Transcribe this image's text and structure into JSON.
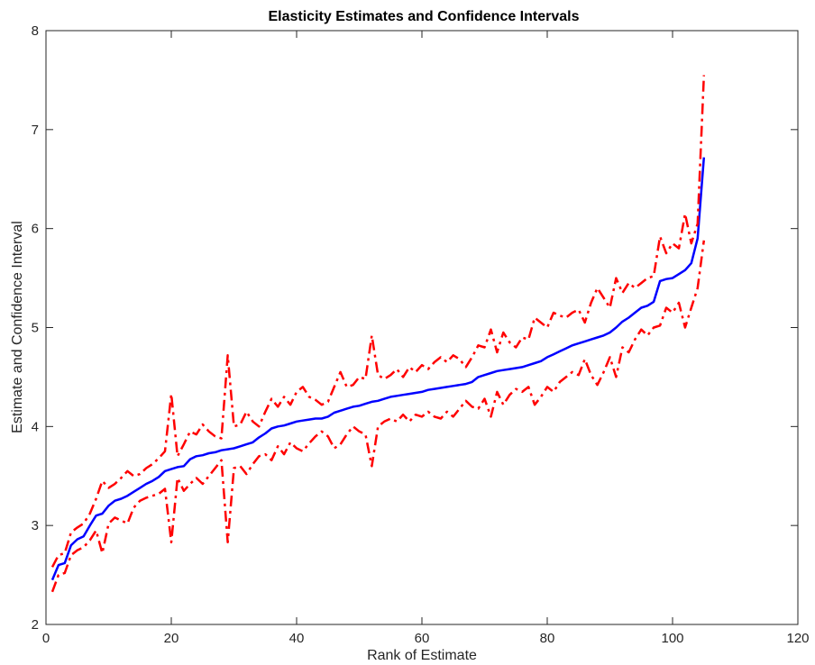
{
  "chart_data": {
    "type": "line",
    "title": "Elasticity Estimates and Confidence Intervals",
    "xlabel": "Rank of Estimate",
    "ylabel": "Estimate and Confidence Interval",
    "xlim": [
      0,
      120
    ],
    "ylim": [
      2,
      8
    ],
    "xticks": [
      0,
      20,
      40,
      60,
      80,
      100,
      120
    ],
    "yticks": [
      2,
      3,
      4,
      5,
      6,
      7,
      8
    ],
    "grid": false,
    "series": [
      {
        "style": "solid",
        "color": "#0000ff",
        "x": [
          1,
          2,
          3,
          4,
          5,
          6,
          7,
          8,
          9,
          10,
          11,
          12,
          13,
          14,
          15,
          16,
          17,
          18,
          19,
          20,
          21,
          22,
          23,
          24,
          25,
          26,
          27,
          28,
          29,
          30,
          31,
          32,
          33,
          34,
          35,
          36,
          37,
          38,
          39,
          40,
          41,
          42,
          43,
          44,
          45,
          46,
          47,
          48,
          49,
          50,
          51,
          52,
          53,
          54,
          55,
          56,
          57,
          58,
          59,
          60,
          61,
          62,
          63,
          64,
          65,
          66,
          67,
          68,
          69,
          70,
          71,
          72,
          73,
          74,
          75,
          76,
          77,
          78,
          79,
          80,
          81,
          82,
          83,
          84,
          85,
          86,
          87,
          88,
          89,
          90,
          91,
          92,
          93,
          94,
          95,
          96,
          97,
          98,
          99,
          100,
          101,
          102,
          103,
          104,
          105
        ],
        "y": [
          2.45,
          2.6,
          2.62,
          2.8,
          2.86,
          2.89,
          3.0,
          3.1,
          3.12,
          3.2,
          3.25,
          3.27,
          3.3,
          3.34,
          3.38,
          3.42,
          3.45,
          3.49,
          3.55,
          3.57,
          3.59,
          3.6,
          3.67,
          3.7,
          3.71,
          3.73,
          3.74,
          3.76,
          3.77,
          3.78,
          3.8,
          3.82,
          3.84,
          3.89,
          3.93,
          3.98,
          4.0,
          4.01,
          4.03,
          4.05,
          4.06,
          4.07,
          4.08,
          4.08,
          4.1,
          4.14,
          4.16,
          4.18,
          4.2,
          4.21,
          4.23,
          4.25,
          4.26,
          4.28,
          4.3,
          4.31,
          4.32,
          4.33,
          4.34,
          4.35,
          4.37,
          4.38,
          4.39,
          4.4,
          4.41,
          4.42,
          4.43,
          4.45,
          4.5,
          4.52,
          4.54,
          4.56,
          4.57,
          4.58,
          4.59,
          4.6,
          4.62,
          4.64,
          4.66,
          4.7,
          4.73,
          4.76,
          4.79,
          4.82,
          4.84,
          4.86,
          4.88,
          4.9,
          4.92,
          4.95,
          5.0,
          5.06,
          5.1,
          5.15,
          5.2,
          5.22,
          5.26,
          5.47,
          5.49,
          5.5,
          5.54,
          5.58,
          5.65,
          5.9,
          6.72
        ]
      },
      {
        "style": "dashdot",
        "color": "#ff0000",
        "x": [
          1,
          2,
          3,
          4,
          5,
          6,
          7,
          8,
          9,
          10,
          11,
          12,
          13,
          14,
          15,
          16,
          17,
          18,
          19,
          20,
          21,
          22,
          23,
          24,
          25,
          26,
          27,
          28,
          29,
          30,
          31,
          32,
          33,
          34,
          35,
          36,
          37,
          38,
          39,
          40,
          41,
          42,
          43,
          44,
          45,
          46,
          47,
          48,
          49,
          50,
          51,
          52,
          53,
          54,
          55,
          56,
          57,
          58,
          59,
          60,
          61,
          62,
          63,
          64,
          65,
          66,
          67,
          68,
          69,
          70,
          71,
          72,
          73,
          74,
          75,
          76,
          77,
          78,
          79,
          80,
          81,
          82,
          83,
          84,
          85,
          86,
          87,
          88,
          89,
          90,
          91,
          92,
          93,
          94,
          95,
          96,
          97,
          98,
          99,
          100,
          101,
          102,
          103,
          104,
          105
        ],
        "y": [
          2.58,
          2.7,
          2.72,
          2.93,
          2.98,
          3.02,
          3.12,
          3.27,
          3.45,
          3.38,
          3.42,
          3.48,
          3.55,
          3.5,
          3.52,
          3.58,
          3.62,
          3.68,
          3.75,
          4.33,
          3.7,
          3.82,
          3.95,
          3.92,
          4.02,
          3.95,
          3.9,
          3.88,
          4.72,
          4.0,
          4.02,
          4.15,
          4.05,
          4.0,
          4.15,
          4.28,
          4.2,
          4.3,
          4.22,
          4.35,
          4.4,
          4.3,
          4.27,
          4.22,
          4.25,
          4.4,
          4.55,
          4.4,
          4.42,
          4.5,
          4.48,
          4.92,
          4.52,
          4.48,
          4.52,
          4.58,
          4.5,
          4.6,
          4.55,
          4.62,
          4.58,
          4.65,
          4.7,
          4.65,
          4.72,
          4.68,
          4.6,
          4.7,
          4.82,
          4.8,
          4.98,
          4.75,
          4.95,
          4.85,
          4.8,
          4.9,
          4.88,
          5.1,
          5.05,
          5.0,
          5.15,
          5.12,
          5.1,
          5.15,
          5.18,
          5.05,
          5.25,
          5.4,
          5.3,
          5.2,
          5.5,
          5.35,
          5.45,
          5.4,
          5.45,
          5.5,
          5.52,
          5.92,
          5.75,
          5.85,
          5.8,
          6.15,
          5.85,
          6.05,
          7.55
        ]
      },
      {
        "style": "dashdot",
        "color": "#ff0000",
        "x": [
          1,
          2,
          3,
          4,
          5,
          6,
          7,
          8,
          9,
          10,
          11,
          12,
          13,
          14,
          15,
          16,
          17,
          18,
          19,
          20,
          21,
          22,
          23,
          24,
          25,
          26,
          27,
          28,
          29,
          30,
          31,
          32,
          33,
          34,
          35,
          36,
          37,
          38,
          39,
          40,
          41,
          42,
          43,
          44,
          45,
          46,
          47,
          48,
          49,
          50,
          51,
          52,
          53,
          54,
          55,
          56,
          57,
          58,
          59,
          60,
          61,
          62,
          63,
          64,
          65,
          66,
          67,
          68,
          69,
          70,
          71,
          72,
          73,
          74,
          75,
          76,
          77,
          78,
          79,
          80,
          81,
          82,
          83,
          84,
          85,
          86,
          87,
          88,
          89,
          90,
          91,
          92,
          93,
          94,
          95,
          96,
          97,
          98,
          99,
          100,
          101,
          102,
          103,
          104,
          105
        ],
        "y": [
          2.33,
          2.5,
          2.52,
          2.7,
          2.75,
          2.78,
          2.85,
          2.95,
          2.72,
          3.02,
          3.08,
          3.05,
          3.02,
          3.18,
          3.25,
          3.28,
          3.3,
          3.32,
          3.37,
          2.83,
          3.48,
          3.35,
          3.42,
          3.48,
          3.42,
          3.5,
          3.58,
          3.66,
          2.83,
          3.58,
          3.6,
          3.52,
          3.62,
          3.7,
          3.72,
          3.66,
          3.8,
          3.72,
          3.84,
          3.78,
          3.75,
          3.83,
          3.9,
          3.95,
          3.9,
          3.78,
          3.82,
          3.92,
          4.0,
          3.95,
          3.92,
          3.6,
          4.0,
          4.05,
          4.08,
          4.05,
          4.12,
          4.05,
          4.12,
          4.1,
          4.15,
          4.1,
          4.08,
          4.15,
          4.1,
          4.18,
          4.26,
          4.2,
          4.18,
          4.28,
          4.1,
          4.35,
          4.22,
          4.32,
          4.38,
          4.35,
          4.4,
          4.22,
          4.3,
          4.4,
          4.35,
          4.45,
          4.5,
          4.55,
          4.52,
          4.68,
          4.52,
          4.42,
          4.55,
          4.7,
          4.5,
          4.8,
          4.75,
          4.88,
          4.98,
          4.92,
          5.0,
          5.02,
          5.2,
          5.15,
          5.25,
          5.0,
          5.2,
          5.4,
          5.88
        ]
      }
    ]
  }
}
